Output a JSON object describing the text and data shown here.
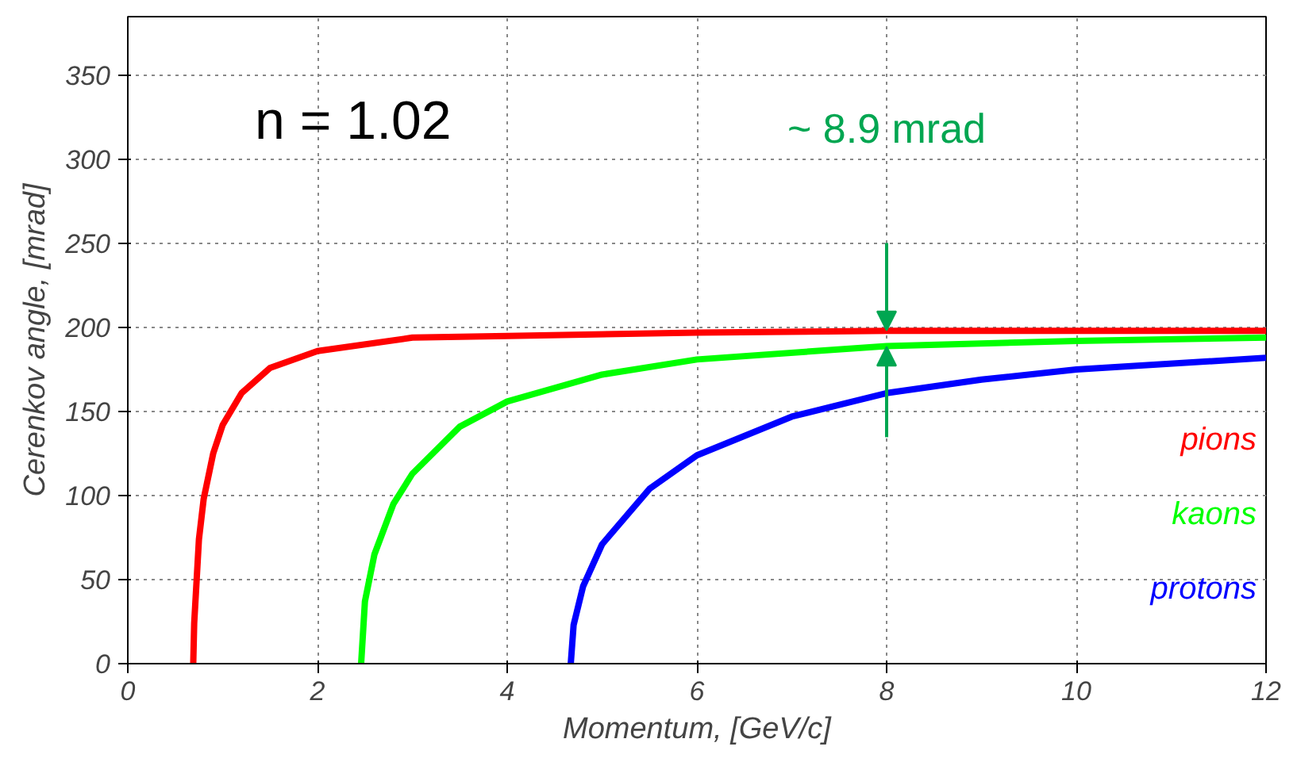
{
  "chart_data": {
    "type": "line",
    "xlabel": "Momentum, [GeV/c]",
    "ylabel": "Cerenkov angle, [mrad]",
    "xlim": [
      0,
      12
    ],
    "ylim": [
      0,
      385
    ],
    "xticks": [
      0,
      2,
      4,
      6,
      8,
      10,
      12
    ],
    "yticks": [
      0,
      50,
      100,
      150,
      200,
      250,
      300,
      350
    ],
    "grid": true,
    "line_style": "solid",
    "marker": "none",
    "annotations": [
      "n = 1.02",
      "~ 8.9 mrad"
    ],
    "series": [
      {
        "name": "pions",
        "color": "#ff0000",
        "x": [
          0.69,
          0.7,
          0.75,
          0.8,
          0.9,
          1.0,
          1.2,
          1.5,
          2,
          3,
          4,
          6,
          8,
          10,
          12
        ],
        "values": [
          0,
          24,
          74,
          98,
          125,
          142,
          161,
          176,
          186,
          194,
          195,
          197,
          198,
          198,
          198
        ]
      },
      {
        "name": "kaons",
        "color": "#00ff00",
        "x": [
          2.46,
          2.5,
          2.6,
          2.8,
          3,
          3.5,
          4,
          5,
          6,
          8,
          10,
          12
        ],
        "values": [
          0,
          37,
          65,
          95,
          113,
          141,
          156,
          172,
          181,
          189,
          192,
          194
        ]
      },
      {
        "name": "protons",
        "color": "#0000ff",
        "x": [
          4.67,
          4.7,
          4.8,
          5,
          5.5,
          6,
          7,
          8,
          9,
          10,
          12
        ],
        "values": [
          0,
          23,
          46,
          71,
          104,
          124,
          147,
          161,
          169,
          175,
          182
        ]
      }
    ]
  }
}
